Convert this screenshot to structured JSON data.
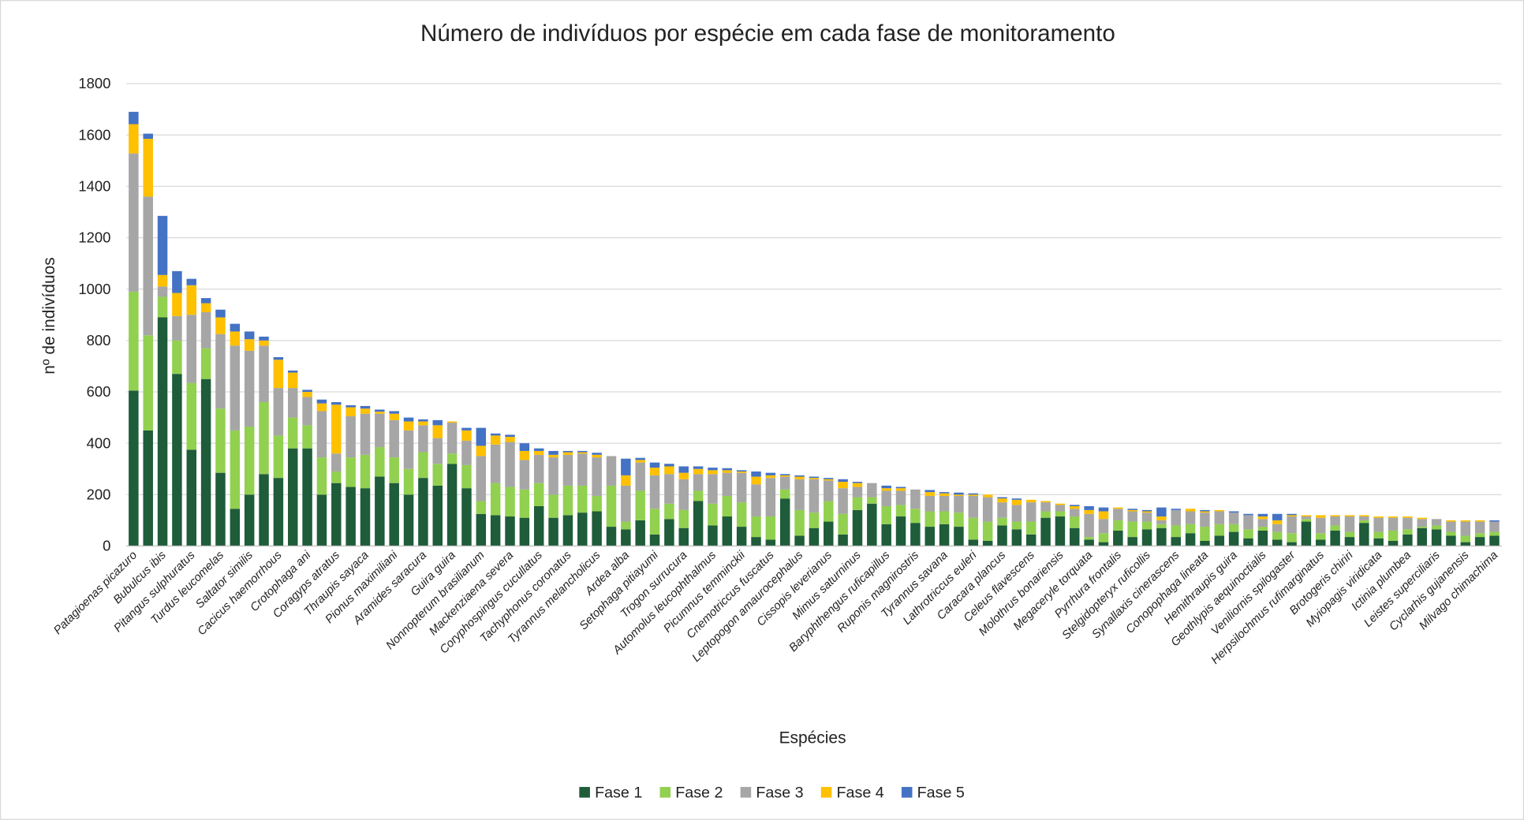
{
  "chart_data": {
    "type": "stacked_bar",
    "title": "Número de indivíduos por espécie em cada fase de monitoramento",
    "x_label": "Espécies",
    "y_label": "nº de indivíduos",
    "categories": [
      "Patagioenas picazuro",
      null,
      "Bubulcus ibis",
      null,
      "Pitangus sulphuratus",
      null,
      "Turdus leucomelas",
      null,
      "Saltator similis",
      null,
      "Cacicus haemorrhous",
      null,
      "Crotophaga ani",
      null,
      "Coragyps atratus",
      null,
      "Thraupis sayaca",
      null,
      "Pionus maximiliani",
      null,
      "Aramides saracura",
      null,
      "Guira guira",
      null,
      "Nonnopterum brasilianum",
      null,
      "Mackenziaena severa",
      null,
      "Coryphospingus cucullatus",
      null,
      "Tachyphonus coronatus",
      null,
      "Tyrannus melancholicus",
      null,
      "Ardea alba",
      null,
      "Setophaga pitiayumi",
      null,
      "Trogon surrucura",
      null,
      "Automolus leucophthalmus",
      null,
      "Picumnus temminckii",
      null,
      "Cnemotriccus fuscatus",
      null,
      "Leptopogon amaurocephalus",
      null,
      "Cissopis leverianus",
      null,
      "Mimus saturninus",
      null,
      "Baryphthengus ruficapillus",
      null,
      "Ruponis magnirostris",
      null,
      "Tyrannus savana",
      null,
      "Lathrotriccus euleri",
      null,
      "Caracara plancus",
      null,
      "Celeus flavescens",
      null,
      "Molothrus bonariensis",
      null,
      "Megaceryle torquata",
      null,
      "Pyrrhura frontalis",
      null,
      "Stelgidopteryx ruficollis",
      null,
      "Synallaxis cinerascens",
      null,
      "Conopophaga lineata",
      null,
      "Hemithraupis guira",
      null,
      "Geothlypis aequinoctialis",
      null,
      "Veniliornis spilogaster",
      null,
      "Herpsilochmus rufimarginatus",
      null,
      "Brotogeris chiriri",
      null,
      "Myiopagis viridicata",
      null,
      "Ictinia plumbea",
      null,
      "Leistes superciliaris",
      null,
      "Cyclarhis gujanensis",
      null,
      "Milvago chimachima"
    ],
    "series": [
      {
        "name": "Fase 1",
        "color": "#1e5c3a",
        "values": [
          605,
          450,
          890,
          670,
          375,
          650,
          285,
          145,
          200,
          280,
          265,
          380,
          380,
          200,
          245,
          230,
          225,
          270,
          245,
          200,
          265,
          235,
          320,
          225,
          125,
          120,
          115,
          110,
          155,
          110,
          120,
          130,
          135,
          75,
          65,
          100,
          45,
          105,
          70,
          175,
          80,
          115,
          75,
          35,
          25,
          185,
          40,
          70,
          95,
          45,
          140,
          165,
          85,
          115,
          90,
          75,
          85,
          75,
          25,
          20,
          80,
          65,
          45,
          110,
          115,
          70,
          25,
          15,
          60,
          35,
          65,
          70,
          35,
          50,
          20,
          40,
          55,
          30,
          60,
          25,
          15,
          95,
          25,
          60,
          35,
          90,
          30,
          20,
          45,
          70,
          65,
          40,
          15,
          35,
          40
        ]
      },
      {
        "name": "Fase 2",
        "color": "#92d050",
        "values": [
          385,
          370,
          80,
          130,
          260,
          120,
          250,
          305,
          265,
          280,
          165,
          120,
          90,
          145,
          45,
          115,
          130,
          115,
          100,
          100,
          100,
          85,
          40,
          90,
          50,
          125,
          115,
          110,
          90,
          90,
          115,
          105,
          60,
          160,
          30,
          115,
          100,
          60,
          70,
          40,
          85,
          80,
          95,
          80,
          90,
          35,
          100,
          60,
          80,
          80,
          50,
          25,
          70,
          45,
          55,
          60,
          50,
          55,
          85,
          75,
          30,
          30,
          50,
          25,
          20,
          45,
          10,
          35,
          40,
          60,
          30,
          15,
          45,
          35,
          55,
          45,
          30,
          35,
          15,
          30,
          35,
          10,
          25,
          20,
          20,
          10,
          25,
          40,
          20,
          5,
          15,
          15,
          25,
          15,
          15
        ]
      },
      {
        "name": "Fase 3",
        "color": "#a6a6a6",
        "values": [
          538,
          540,
          40,
          95,
          265,
          140,
          290,
          330,
          295,
          220,
          185,
          115,
          110,
          180,
          70,
          160,
          160,
          130,
          145,
          150,
          105,
          100,
          120,
          95,
          175,
          150,
          175,
          115,
          110,
          145,
          120,
          125,
          150,
          115,
          140,
          110,
          130,
          115,
          120,
          65,
          115,
          90,
          115,
          125,
          150,
          50,
          120,
          130,
          80,
          100,
          40,
          55,
          60,
          55,
          75,
          60,
          60,
          65,
          85,
          95,
          60,
          65,
          75,
          35,
          25,
          30,
          90,
          55,
          45,
          40,
          35,
          15,
          60,
          50,
          55,
          50,
          45,
          55,
          30,
          30,
          65,
          10,
          60,
          35,
          60,
          15,
          55,
          50,
          45,
          30,
          25,
          40,
          55,
          45,
          40
        ]
      },
      {
        "name": "Fase 4",
        "color": "#ffc000",
        "values": [
          114,
          225,
          45,
          90,
          115,
          35,
          65,
          55,
          45,
          20,
          110,
          60,
          20,
          30,
          190,
          35,
          20,
          8,
          25,
          35,
          15,
          50,
          5,
          40,
          40,
          35,
          20,
          35,
          15,
          10,
          10,
          5,
          10,
          0,
          40,
          10,
          30,
          30,
          25,
          20,
          15,
          10,
          5,
          30,
          10,
          5,
          10,
          5,
          5,
          25,
          15,
          0,
          10,
          10,
          0,
          15,
          10,
          5,
          5,
          10,
          15,
          20,
          10,
          5,
          5,
          10,
          15,
          30,
          5,
          5,
          5,
          15,
          0,
          10,
          5,
          5,
          0,
          0,
          10,
          15,
          5,
          5,
          10,
          5,
          5,
          5,
          5,
          5,
          5,
          5,
          0,
          5,
          5,
          5,
          0
        ]
      },
      {
        "name": "Fase 5",
        "color": "#4472c4",
        "values": [
          48,
          20,
          230,
          85,
          25,
          20,
          30,
          30,
          30,
          15,
          10,
          8,
          8,
          15,
          10,
          8,
          10,
          8,
          10,
          15,
          8,
          20,
          0,
          10,
          70,
          8,
          8,
          30,
          10,
          15,
          5,
          5,
          8,
          0,
          65,
          8,
          20,
          10,
          25,
          10,
          10,
          8,
          5,
          20,
          10,
          5,
          5,
          5,
          5,
          10,
          5,
          0,
          10,
          5,
          0,
          8,
          5,
          8,
          5,
          0,
          5,
          5,
          0,
          0,
          0,
          5,
          15,
          15,
          0,
          5,
          5,
          35,
          5,
          0,
          5,
          0,
          5,
          5,
          10,
          25,
          5,
          0,
          0,
          0,
          0,
          0,
          0,
          0,
          0,
          0,
          0,
          0,
          0,
          0,
          5
        ]
      }
    ],
    "ylim": [
      0,
      1800
    ],
    "yticks": [
      0,
      200,
      400,
      600,
      800,
      1000,
      1200,
      1400,
      1600,
      1800
    ],
    "grid": true,
    "legend": "bottom"
  }
}
